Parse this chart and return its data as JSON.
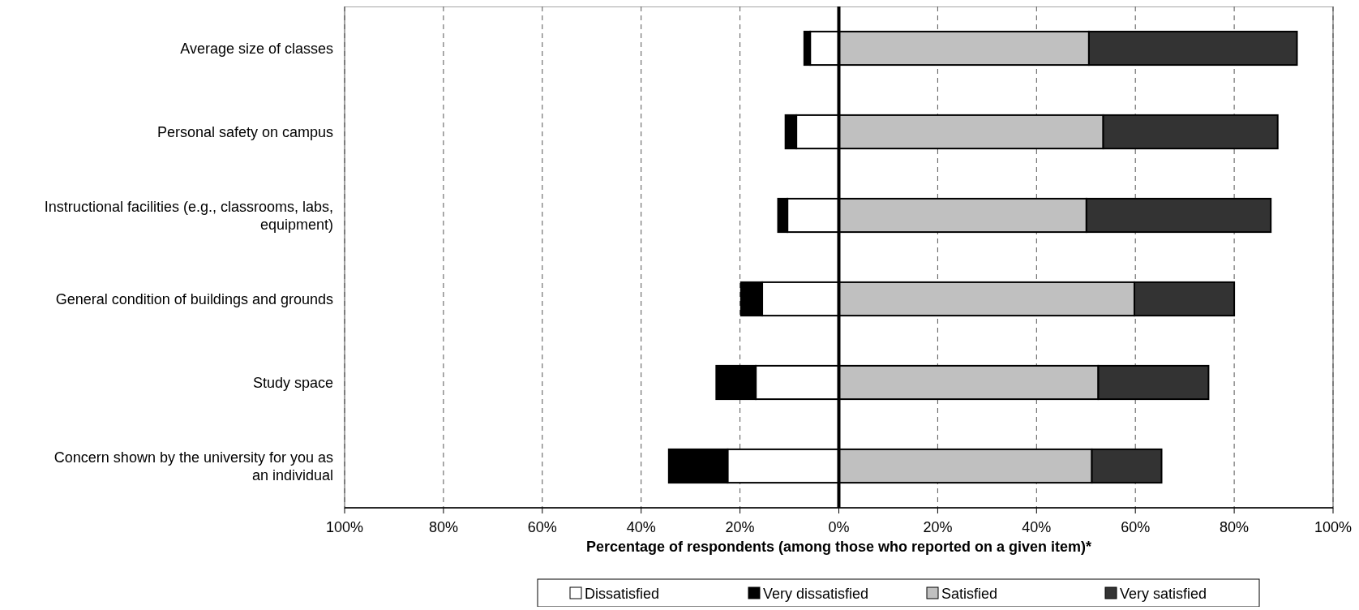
{
  "chart_data": {
    "type": "bar",
    "orientation": "horizontal",
    "stacked": true,
    "categories": [
      "Average size of classes",
      "Personal safety on campus",
      "Instructional facilities (e.g., classrooms, labs, equipment)",
      "General condition of buildings and grounds",
      "Study space",
      "Concern shown by the university for you as an individual"
    ],
    "series": [
      {
        "name": "Dissatisfied",
        "color": "#ffffff",
        "values": [
          -5.8,
          -8.6,
          -10.4,
          -15.5,
          -16.8,
          -22.5
        ]
      },
      {
        "name": "Very dissatisfied",
        "color": "#000000",
        "values": [
          -1.2,
          -2.2,
          -1.9,
          -4.3,
          -8.0,
          -11.9
        ]
      },
      {
        "name": "Satisfied",
        "color": "#c0c0c0",
        "values": [
          50.6,
          53.5,
          50.1,
          59.8,
          52.5,
          51.2
        ]
      },
      {
        "name": "Very satisfied",
        "color": "#333333",
        "values": [
          42.1,
          35.3,
          37.3,
          20.2,
          22.3,
          14.1
        ]
      }
    ],
    "xlim": [
      -100,
      100
    ],
    "xticks": [
      {
        "value": -100,
        "label": "100%"
      },
      {
        "value": -80,
        "label": "80%"
      },
      {
        "value": -60,
        "label": "60%"
      },
      {
        "value": -40,
        "label": "40%"
      },
      {
        "value": -20,
        "label": "20%"
      },
      {
        "value": 0,
        "label": "0%"
      },
      {
        "value": 20,
        "label": "20%"
      },
      {
        "value": 40,
        "label": "40%"
      },
      {
        "value": 60,
        "label": "60%"
      },
      {
        "value": 80,
        "label": "80%"
      },
      {
        "value": 100,
        "label": "100%"
      }
    ],
    "xlabel": "Percentage of respondents (among those who reported on a given item)*",
    "grid": "x",
    "legend": "bottom"
  }
}
